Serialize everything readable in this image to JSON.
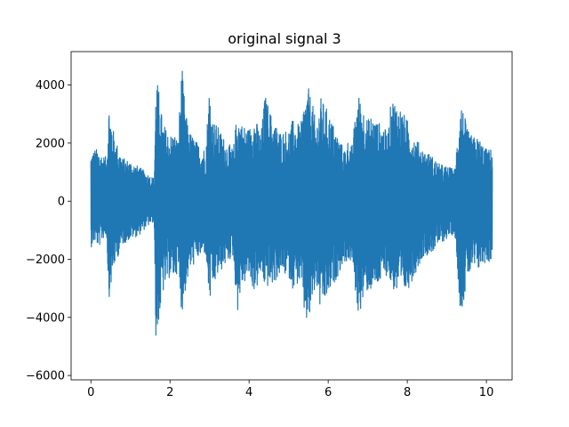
{
  "chart_data": {
    "type": "line",
    "title": "original signal 3",
    "xlabel": "",
    "ylabel": "",
    "xlim": [
      -0.5,
      10.65
    ],
    "ylim": [
      -6150,
      5150
    ],
    "x_ticks": [
      0,
      2,
      4,
      6,
      8,
      10
    ],
    "x_tick_labels": [
      "0",
      "2",
      "4",
      "6",
      "8",
      "10"
    ],
    "y_ticks": [
      -6000,
      -4000,
      -2000,
      0,
      2000,
      4000
    ],
    "y_tick_labels": [
      "−6000",
      "−4000",
      "−2000",
      "0",
      "2000",
      "4000"
    ],
    "grid": false,
    "series_color": "#1f77b4",
    "duration": 10.15,
    "envelope_x": [
      0,
      0.1,
      0.2,
      0.3,
      0.4,
      0.45,
      0.5,
      0.6,
      0.8,
      1.0,
      1.2,
      1.4,
      1.6,
      1.65,
      1.7,
      1.75,
      1.8,
      1.9,
      2.0,
      2.1,
      2.2,
      2.3,
      2.35,
      2.4,
      2.5,
      2.7,
      2.9,
      3.0,
      3.05,
      3.1,
      3.2,
      3.4,
      3.6,
      3.7,
      3.8,
      4.0,
      4.1,
      4.2,
      4.3,
      4.4,
      4.6,
      4.8,
      5.0,
      5.1,
      5.3,
      5.4,
      5.5,
      5.6,
      5.7,
      5.8,
      6.0,
      6.2,
      6.4,
      6.5,
      6.6,
      6.75,
      6.8,
      6.9,
      7.0,
      7.1,
      7.2,
      7.3,
      7.4,
      7.5,
      7.6,
      7.8,
      8.0,
      8.1,
      8.2,
      8.3,
      8.4,
      8.6,
      8.8,
      9.0,
      9.2,
      9.35,
      9.4,
      9.45,
      9.5,
      9.6,
      9.7,
      9.8,
      9.9,
      10.0,
      10.1,
      10.15
    ],
    "envelope_top": [
      1700,
      1800,
      1800,
      1600,
      1500,
      3400,
      3000,
      2200,
      1500,
      1400,
      1200,
      1000,
      800,
      4500,
      3900,
      3700,
      2800,
      2500,
      2300,
      2400,
      2100,
      4700,
      3800,
      3000,
      2400,
      2000,
      1800,
      4100,
      3000,
      2800,
      2600,
      2100,
      1800,
      3100,
      2700,
      2500,
      3000,
      2700,
      2300,
      3700,
      2800,
      2400,
      2500,
      2800,
      2600,
      3500,
      3900,
      3400,
      2600,
      3600,
      3100,
      2400,
      1800,
      2100,
      1900,
      3700,
      3600,
      3200,
      2800,
      3000,
      2800,
      2700,
      2600,
      2300,
      3600,
      3300,
      2800,
      2400,
      2200,
      2000,
      1800,
      1600,
      1300,
      1200,
      1100,
      3600,
      3200,
      3000,
      2500,
      2300,
      2200,
      2200,
      2000,
      1800,
      1800,
      1800
    ],
    "envelope_bottom": [
      -1600,
      -1400,
      -1600,
      -1300,
      -1200,
      -3400,
      -3000,
      -2200,
      -1500,
      -1300,
      -1200,
      -900,
      -700,
      -5600,
      -4200,
      -4000,
      -3300,
      -2900,
      -2600,
      -2700,
      -2400,
      -3900,
      -3500,
      -3000,
      -2400,
      -2000,
      -1800,
      -3600,
      -3200,
      -3000,
      -2600,
      -2200,
      -1900,
      -3900,
      -3000,
      -2600,
      -3100,
      -3000,
      -2500,
      -3000,
      -2900,
      -2500,
      -2600,
      -3000,
      -2800,
      -4000,
      -4400,
      -3500,
      -2900,
      -3800,
      -3300,
      -2700,
      -2100,
      -2100,
      -2100,
      -3900,
      -3800,
      -3400,
      -3100,
      -3100,
      -3000,
      -2900,
      -2700,
      -2500,
      -3000,
      -3300,
      -3100,
      -2800,
      -2500,
      -2200,
      -1900,
      -1800,
      -1500,
      -1300,
      -1100,
      -3900,
      -3600,
      -3300,
      -2700,
      -2500,
      -2400,
      -2400,
      -2200,
      -2100,
      -2100,
      -2000
    ]
  }
}
